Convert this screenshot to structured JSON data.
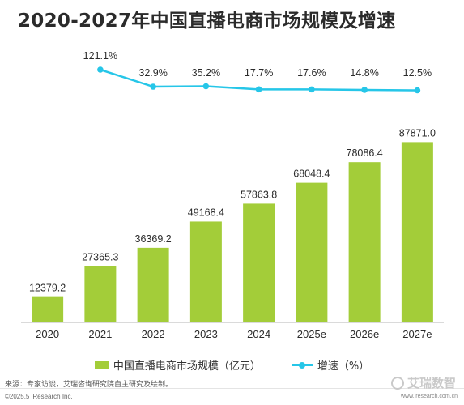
{
  "title": "2020-2027年中国直播电商市场规模及增速",
  "chart_data": {
    "type": "bar+line",
    "categories": [
      "2020",
      "2021",
      "2022",
      "2023",
      "2024",
      "2025e",
      "2026e",
      "2027e"
    ],
    "series": [
      {
        "name": "中国直播电商市场规模（亿元）",
        "type": "bar",
        "color": "#a3cd39",
        "values": [
          12379.2,
          27365.3,
          36369.2,
          49168.4,
          57863.8,
          68048.4,
          78086.4,
          87871.0
        ],
        "labels": [
          "12379.2",
          "27365.3",
          "36369.2",
          "49168.4",
          "57863.8",
          "68048.4",
          "78086.4",
          "87871.0"
        ]
      },
      {
        "name": "增速（%）",
        "type": "line",
        "color": "#26c6e8",
        "values": [
          null,
          121.1,
          32.9,
          35.2,
          17.7,
          17.6,
          14.8,
          12.5
        ],
        "labels": [
          "",
          "121.1%",
          "32.9%",
          "35.2%",
          "17.7%",
          "17.6%",
          "14.8%",
          "12.5%"
        ]
      }
    ]
  },
  "legend": {
    "bar_label": "中国直播电商市场规模（亿元）",
    "line_label": "增速（%）"
  },
  "footer": {
    "source": "来源：专家访谈，艾瑞咨询研究院自主研究及绘制。",
    "copyright": "©2025.5 iResearch Inc.",
    "website": "www.iresearch.com.cn",
    "watermark": "艾瑞数智"
  }
}
